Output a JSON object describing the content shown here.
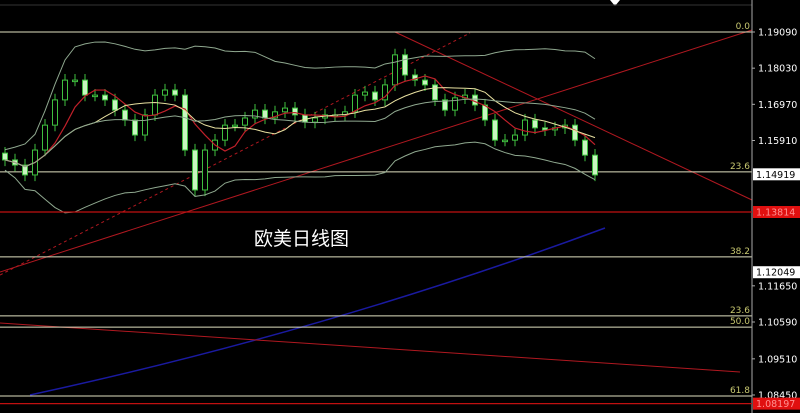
{
  "chart_data": {
    "type": "candlestick",
    "title": "欧美日线图",
    "ylim": [
      1.08,
      1.195
    ],
    "y_ticks": [
      "1.19090",
      "1.18030",
      "1.16970",
      "1.15910",
      "1.11650",
      "1.10590",
      "1.09510",
      "1.08450"
    ],
    "y_tick_values": [
      1.1909,
      1.1803,
      1.1697,
      1.1591,
      1.1165,
      1.1059,
      1.0951,
      1.0845
    ],
    "price_labels": [
      {
        "text": "1.14919",
        "value": 1.14919,
        "style": "current"
      },
      {
        "text": "1.13814",
        "value": 1.13814,
        "style": "red"
      },
      {
        "text": "1.12049",
        "value": 1.12049,
        "style": "current"
      },
      {
        "text": "1.08197",
        "value": 1.08197,
        "style": "red"
      }
    ],
    "fib_levels": [
      {
        "label": "0.0",
        "value": 1.1909
      },
      {
        "label": "23.6",
        "value": 1.1499
      },
      {
        "label": "38.2",
        "value": 1.125
      },
      {
        "label": "23.6",
        "value": 1.1077
      },
      {
        "label": "50.0",
        "value": 1.1044
      },
      {
        "label": "61.8",
        "value": 1.0842
      }
    ],
    "closes": [
      1.1534,
      1.1519,
      1.149,
      1.1563,
      1.1636,
      1.171,
      1.1768,
      1.1768,
      1.1724,
      1.1724,
      1.171,
      1.168,
      1.1651,
      1.1607,
      1.1666,
      1.1724,
      1.1739,
      1.1724,
      1.1563,
      1.1446,
      1.1563,
      1.1592,
      1.1636,
      1.1636,
      1.1657,
      1.168,
      1.1657,
      1.1675,
      1.1686,
      1.1666,
      1.1645,
      1.1657,
      1.1666,
      1.1666,
      1.1675,
      1.1724,
      1.1733,
      1.171,
      1.1754,
      1.1842,
      1.1783,
      1.1768,
      1.1754,
      1.171,
      1.168,
      1.1716,
      1.1724,
      1.1695,
      1.1651,
      1.1592,
      1.1592,
      1.1607,
      1.1651,
      1.1628,
      1.1622,
      1.1628,
      1.1636,
      1.1592,
      1.1548,
      1.149
    ],
    "colors": {
      "background": "#000000",
      "candle": "#c8f5c0",
      "candle_outline": "#3fbf3f",
      "ma_fast": "#c0202a",
      "ma_slow": "#e8e0a0",
      "bands": "#8fa88f",
      "trendline": "#b01820",
      "long_ma": "#1a1aa0",
      "fib": "#e0e0c0",
      "fib_text": "#c8c870",
      "axis_text": "#ffffff"
    },
    "grid": false
  }
}
